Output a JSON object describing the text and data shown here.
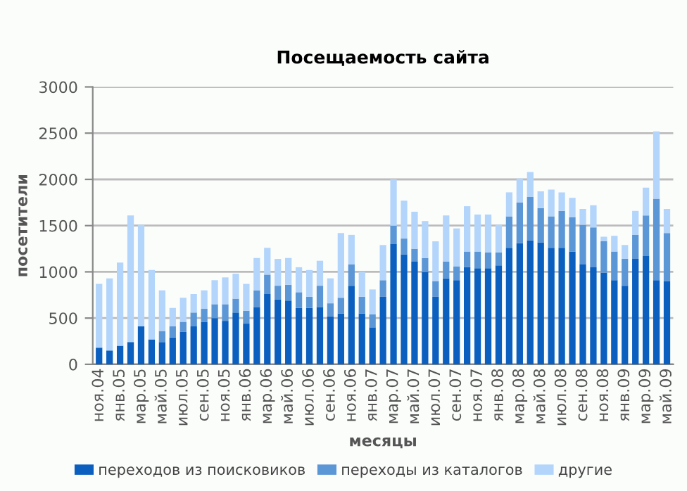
{
  "chart_data": {
    "type": "bar",
    "title": "Посещаемость сайта",
    "xlabel": "месяцы",
    "ylabel": "посетители",
    "stacked": true,
    "categories": [
      "ноя.04",
      null,
      "янв.05",
      null,
      "мар.05",
      null,
      "май.05",
      null,
      "июл.05",
      null,
      "сен.05",
      null,
      "ноя.05",
      null,
      "янв.06",
      null,
      "мар.06",
      null,
      "май.06",
      null,
      "июл.06",
      null,
      "сен.06",
      null,
      "ноя.06",
      null,
      "янв.07",
      null,
      "мар.07",
      null,
      "май.07",
      null,
      "июл.07",
      null,
      "сен.07",
      null,
      "ноя.07",
      null,
      "янв.08",
      null,
      "мар.08",
      null,
      "май.08",
      null,
      "июл.08",
      null,
      "сен.08",
      null,
      "ноя.08",
      null,
      "янв.09",
      null,
      "мар.09",
      null,
      "май.09"
    ],
    "series": [
      {
        "name": "переходов из поисковиков",
        "color": "#0a5fbf",
        "values": [
          180,
          150,
          200,
          240,
          410,
          270,
          240,
          290,
          350,
          410,
          460,
          500,
          470,
          560,
          440,
          620,
          760,
          700,
          690,
          610,
          610,
          620,
          520,
          550,
          850,
          550,
          400,
          730,
          1300,
          1190,
          1110,
          1000,
          730,
          930,
          910,
          1050,
          1040,
          1040,
          1070,
          1260,
          1310,
          1340,
          1320,
          1260,
          1260,
          1220,
          1080,
          1050,
          990,
          910,
          850,
          1140,
          1170,
          910,
          900
        ]
      },
      {
        "name": "переходы из каталогов",
        "color": "#5b96d6",
        "values": [
          0,
          0,
          0,
          0,
          0,
          0,
          120,
          120,
          110,
          150,
          140,
          150,
          180,
          150,
          140,
          180,
          210,
          150,
          170,
          170,
          120,
          230,
          140,
          170,
          230,
          180,
          140,
          180,
          200,
          170,
          140,
          150,
          170,
          180,
          150,
          170,
          180,
          170,
          140,
          340,
          440,
          470,
          370,
          340,
          400,
          370,
          430,
          430,
          340,
          310,
          290,
          260,
          440,
          880,
          520
        ]
      },
      {
        "name": "другие",
        "color": "#b3d5fb",
        "values": [
          690,
          780,
          900,
          1370,
          1100,
          750,
          440,
          200,
          260,
          200,
          200,
          260,
          290,
          270,
          290,
          350,
          290,
          290,
          290,
          270,
          290,
          270,
          270,
          700,
          320,
          270,
          270,
          380,
          500,
          410,
          400,
          400,
          430,
          500,
          410,
          490,
          400,
          410,
          300,
          260,
          260,
          270,
          180,
          290,
          200,
          210,
          170,
          240,
          50,
          170,
          150,
          260,
          300,
          730,
          260
        ]
      }
    ],
    "ylim": [
      0,
      3000
    ],
    "yticks": [
      0,
      500,
      1000,
      1500,
      2000,
      2500,
      3000
    ],
    "grid": "y",
    "legend": "bottom"
  }
}
